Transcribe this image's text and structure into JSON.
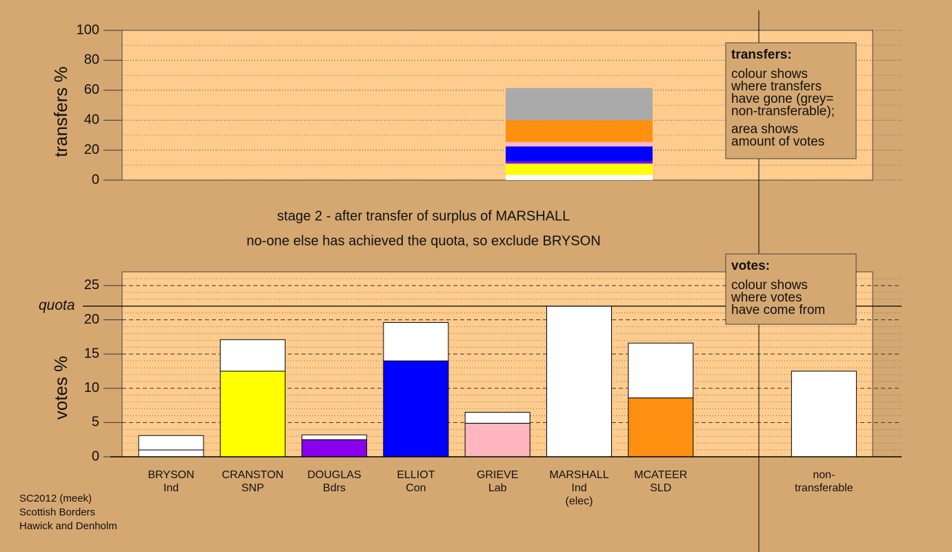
{
  "chart_data": [
    {
      "type": "bar",
      "stacked": true,
      "ylabel": "transfers %",
      "categories": [
        null
      ],
      "ylim": [
        0,
        100
      ],
      "yticks": [
        0,
        20,
        40,
        60,
        80,
        100
      ],
      "grid": true,
      "series": [
        {
          "color": "#ffffff",
          "values": [
            3.5
          ]
        },
        {
          "color": "#ffff00",
          "values": [
            7.5
          ]
        },
        {
          "color": "#8800ee",
          "values": [
            1.5
          ]
        },
        {
          "color": "#0000ff",
          "values": [
            10
          ]
        },
        {
          "color": "#ffb6c1",
          "values": [
            3
          ]
        },
        {
          "color": "#ff9010",
          "values": [
            14.5
          ]
        },
        {
          "color": "#aaaaaa",
          "values": [
            21.5
          ]
        }
      ]
    },
    {
      "type": "bar",
      "stacked": true,
      "ylabel": "votes %",
      "categories": [
        [
          "BRYSON",
          "Ind"
        ],
        [
          "CRANSTON",
          "SNP"
        ],
        [
          "DOUGLAS",
          "Bdrs"
        ],
        [
          "ELLIOT",
          "Con"
        ],
        [
          "GRIEVE",
          "Lab"
        ],
        [
          "MARSHALL",
          "Ind",
          "(elec)"
        ],
        [
          "MCATEER",
          "SLD"
        ],
        null,
        [
          "non-",
          "transferable"
        ]
      ],
      "ylim": [
        0,
        27
      ],
      "yticks": [
        0,
        5,
        10,
        15,
        20,
        25
      ],
      "grid": true,
      "quota": {
        "label": "quota",
        "value": 22.0
      },
      "series": [
        {
          "colors": [
            "#ffffff",
            "#ffff00",
            "#8800ee",
            "#0000ff",
            "#ffb6c1",
            "#ffffff",
            "#ff9010",
            null,
            null
          ],
          "values": [
            1.0,
            12.5,
            2.5,
            14.0,
            4.9,
            22.0,
            8.6,
            null,
            null
          ]
        },
        {
          "color": "#ffffff",
          "values": [
            2.1,
            4.6,
            0.7,
            5.6,
            1.6,
            null,
            8.0,
            null,
            12.5
          ]
        }
      ]
    }
  ],
  "captions": [
    "stage 2 - after transfer of surplus of MARSHALL",
    "no-one else has achieved the quota, so exclude BRYSON"
  ],
  "notes": {
    "transfers": {
      "title": "transfers:",
      "paragraphs": [
        [
          "colour shows",
          "where transfers",
          "have gone (grey=",
          "non-transferable);"
        ],
        [
          "area shows",
          "amount of votes"
        ]
      ]
    },
    "votes": {
      "title": "votes:",
      "paragraphs": [
        [
          "colour shows",
          "where votes",
          "have come from"
        ]
      ]
    }
  },
  "footer": [
    "SC2012 (meek)",
    "Scottish Borders",
    "Hawick and Denholm"
  ]
}
